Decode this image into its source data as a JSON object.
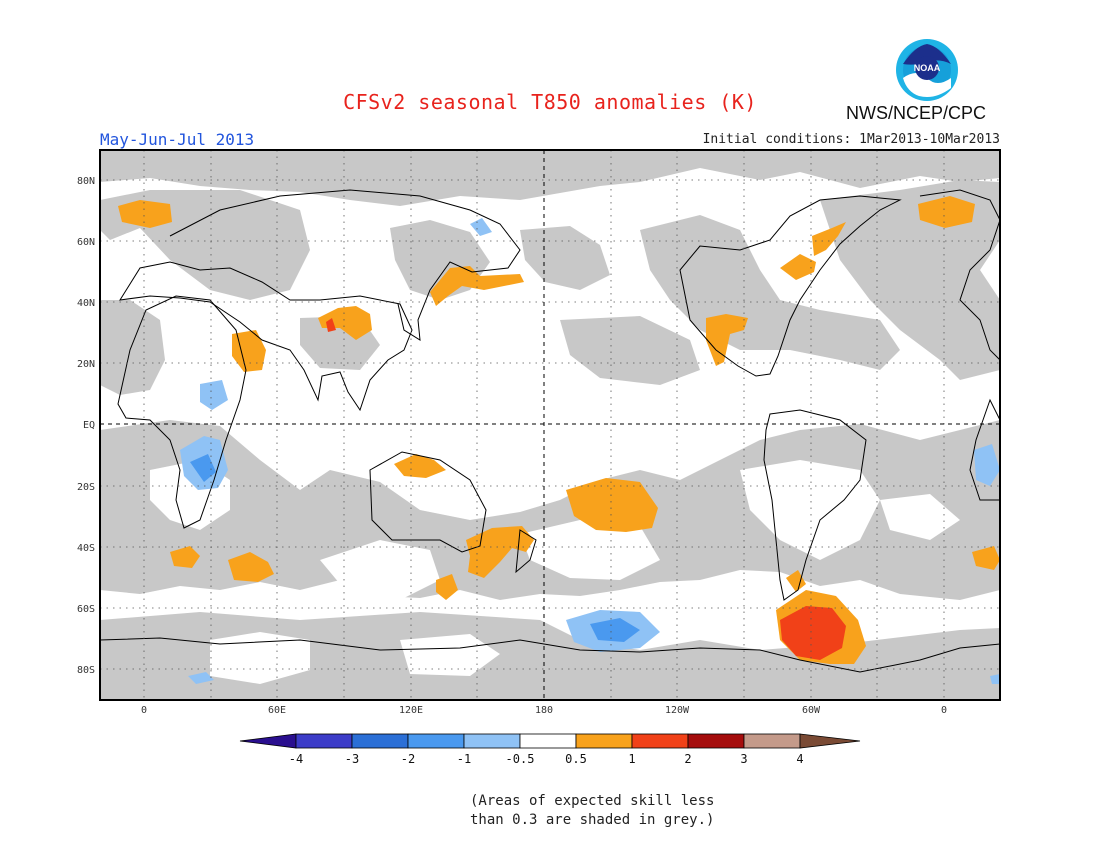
{
  "header": {
    "title": "CFSv2 seasonal T850 anomalies (K)",
    "period": "May-Jun-Jul 2013",
    "initial_conditions": "Initial conditions: 1Mar2013-10Mar2013",
    "agency": "NWS/NCEP/CPC",
    "logo_text": "NOAA"
  },
  "axes": {
    "lat_labels": [
      "80N",
      "60N",
      "40N",
      "20N",
      "EQ",
      "20S",
      "40S",
      "60S",
      "80S"
    ],
    "lon_labels": [
      "0",
      "60E",
      "120E",
      "180",
      "120W",
      "60W",
      "0"
    ]
  },
  "colorbar": {
    "labels": [
      "-4",
      "-3",
      "-2",
      "-1",
      "-0.5",
      "0.5",
      "1",
      "2",
      "3",
      "4"
    ],
    "colors": [
      "#2a0f8f",
      "#3c3cc8",
      "#2b6fd6",
      "#4a99ef",
      "#8fc2f5",
      "#ffffff",
      "#f8a21c",
      "#f14118",
      "#a50d0d",
      "#c49a8a",
      "#7a4a34"
    ]
  },
  "palette": {
    "grey_mask": "#c8c8c8",
    "orange": "#f8a21c",
    "red": "#f14118",
    "light_blue": "#8fc2f5",
    "blue": "#4a99ef"
  },
  "note": {
    "line1": "(Areas of expected skill less",
    "line2": "than 0.3 are shaded in grey.)"
  }
}
